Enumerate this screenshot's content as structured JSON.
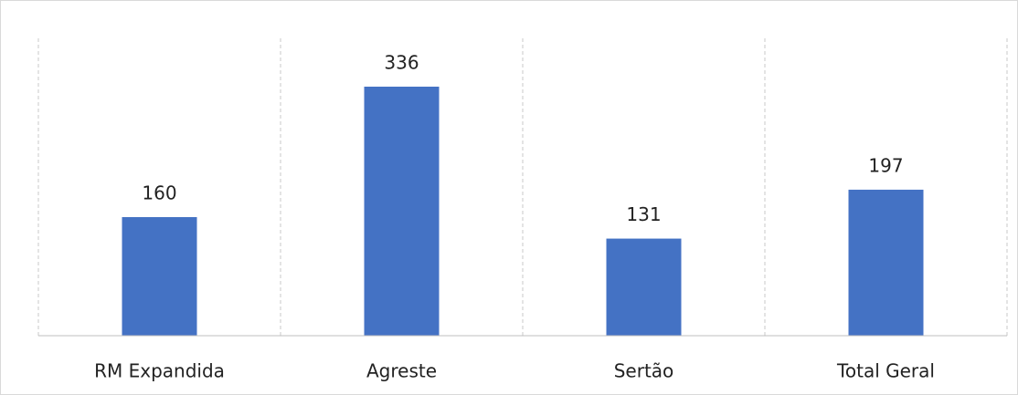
{
  "chart_data": {
    "type": "bar",
    "categories": [
      "RM Expandida",
      "Agreste",
      "Sertão",
      "Total Geral"
    ],
    "values": [
      160,
      336,
      131,
      197
    ],
    "color": "#4472c4"
  }
}
